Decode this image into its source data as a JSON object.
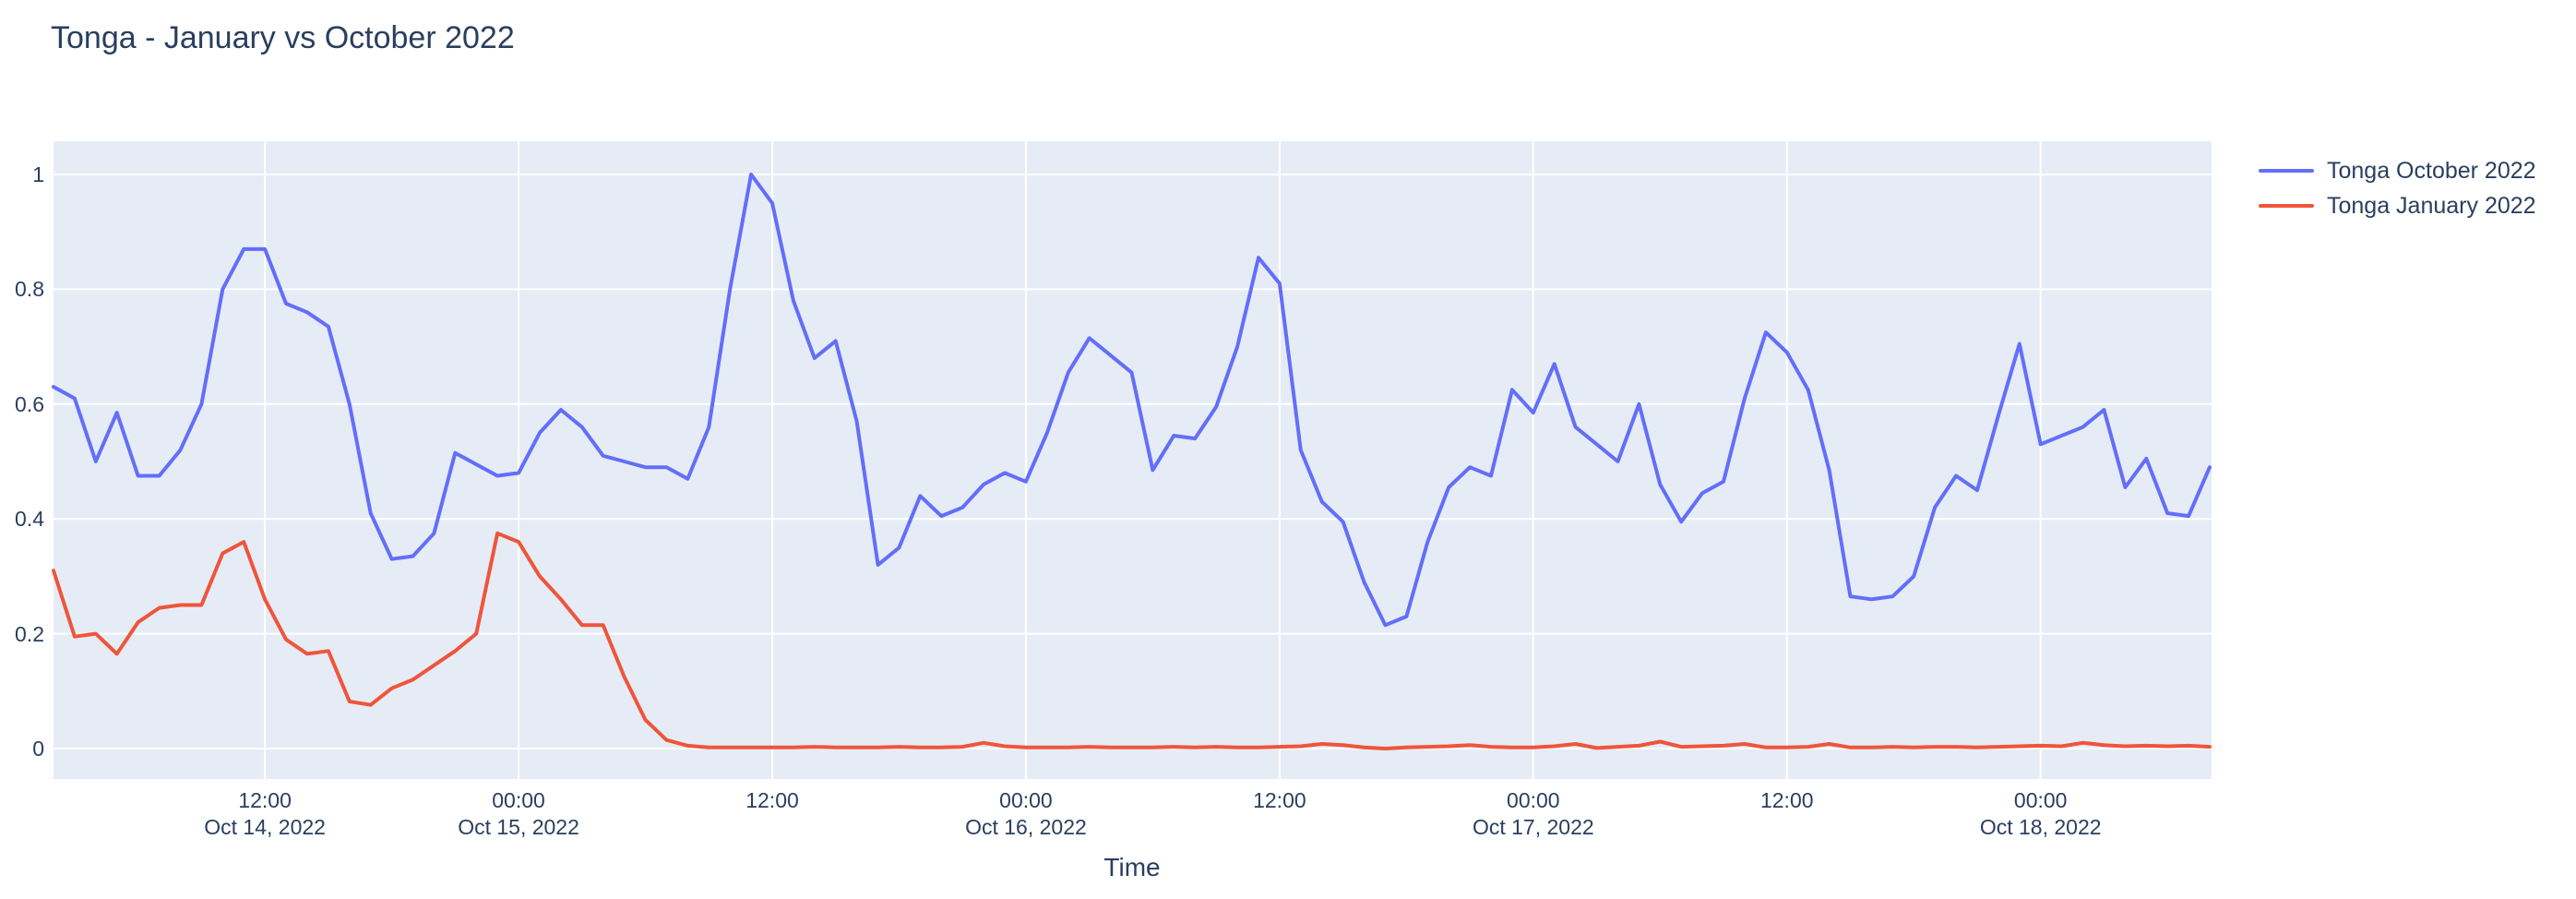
{
  "page": {
    "title": "Tonga - January vs October 2022"
  },
  "colors": {
    "page_bg": "#FFFFFF",
    "plot_bg": "#E5ECF6",
    "grid": "#FFFFFF",
    "text": "#2A3F5F",
    "october_line": "#636EFA",
    "january_line": "#EF553B"
  },
  "legend": {
    "items": [
      {
        "label": "Tonga October 2022",
        "color": "#636EFA"
      },
      {
        "label": "Tonga January 2022",
        "color": "#EF553B"
      }
    ]
  },
  "chart_data": {
    "type": "line",
    "title": "Tonga - January vs October 2022",
    "xlabel": "Time",
    "ylabel": "",
    "legend_position": "right",
    "grid": true,
    "x_start": "2022-10-14 02:00",
    "x_interval_hours": 1,
    "n_points": 103,
    "xaxis": {
      "range_hours_from_oct14_0000": [
        2,
        104
      ],
      "ticks": [
        {
          "hour": 12,
          "time": "12:00",
          "date": "Oct 14, 2022"
        },
        {
          "hour": 24,
          "time": "00:00",
          "date": "Oct 15, 2022"
        },
        {
          "hour": 36,
          "time": "12:00",
          "date": ""
        },
        {
          "hour": 48,
          "time": "00:00",
          "date": "Oct 16, 2022"
        },
        {
          "hour": 60,
          "time": "12:00",
          "date": ""
        },
        {
          "hour": 72,
          "time": "00:00",
          "date": "Oct 17, 2022"
        },
        {
          "hour": 84,
          "time": "12:00",
          "date": ""
        },
        {
          "hour": 96,
          "time": "00:00",
          "date": "Oct 18, 2022"
        }
      ]
    },
    "yaxis": {
      "tick_values": [
        0,
        0.2,
        0.4,
        0.6,
        0.8,
        1
      ],
      "range": [
        -0.053,
        1.058
      ]
    },
    "series": [
      {
        "name": "Tonga October 2022",
        "color": "#636EFA",
        "values": [
          0.63,
          0.61,
          0.5,
          0.585,
          0.475,
          0.475,
          0.52,
          0.6,
          0.8,
          0.87,
          0.87,
          0.775,
          0.76,
          0.735,
          0.6,
          0.41,
          0.33,
          0.335,
          0.375,
          0.515,
          0.495,
          0.475,
          0.48,
          0.55,
          0.59,
          0.56,
          0.51,
          0.5,
          0.49,
          0.49,
          0.47,
          0.56,
          0.8,
          1.0,
          0.95,
          0.78,
          0.68,
          0.71,
          0.57,
          0.32,
          0.35,
          0.44,
          0.405,
          0.42,
          0.46,
          0.48,
          0.465,
          0.55,
          0.655,
          0.715,
          0.685,
          0.655,
          0.485,
          0.545,
          0.54,
          0.595,
          0.7,
          0.855,
          0.81,
          0.52,
          0.43,
          0.395,
          0.29,
          0.215,
          0.23,
          0.36,
          0.455,
          0.49,
          0.475,
          0.625,
          0.585,
          0.67,
          0.56,
          0.53,
          0.5,
          0.6,
          0.46,
          0.395,
          0.445,
          0.465,
          0.61,
          0.725,
          0.69,
          0.625,
          0.485,
          0.265,
          0.26,
          0.265,
          0.3,
          0.42,
          0.475,
          0.45,
          0.58,
          0.705,
          0.53,
          0.545,
          0.56,
          0.59,
          0.455,
          0.505,
          0.41,
          0.405,
          0.49
        ]
      },
      {
        "name": "Tonga January 2022",
        "color": "#EF553B",
        "values": [
          0.31,
          0.195,
          0.2,
          0.165,
          0.22,
          0.245,
          0.25,
          0.25,
          0.34,
          0.36,
          0.26,
          0.19,
          0.165,
          0.17,
          0.082,
          0.076,
          0.105,
          0.12,
          0.145,
          0.17,
          0.2,
          0.375,
          0.36,
          0.3,
          0.26,
          0.215,
          0.215,
          0.125,
          0.05,
          0.015,
          0.005,
          0.002,
          0.002,
          0.002,
          0.002,
          0.002,
          0.003,
          0.002,
          0.002,
          0.002,
          0.003,
          0.002,
          0.002,
          0.003,
          0.01,
          0.004,
          0.002,
          0.002,
          0.002,
          0.003,
          0.002,
          0.002,
          0.002,
          0.003,
          0.002,
          0.003,
          0.002,
          0.002,
          0.003,
          0.004,
          0.008,
          0.006,
          0.002,
          0.0,
          0.002,
          0.003,
          0.004,
          0.006,
          0.003,
          0.002,
          0.002,
          0.004,
          0.008,
          0.001,
          0.003,
          0.005,
          0.012,
          0.003,
          0.004,
          0.005,
          0.008,
          0.002,
          0.002,
          0.003,
          0.008,
          0.002,
          0.002,
          0.003,
          0.002,
          0.003,
          0.003,
          0.002,
          0.003,
          0.004,
          0.005,
          0.004,
          0.01,
          0.006,
          0.004,
          0.005,
          0.004,
          0.005,
          0.003
        ]
      }
    ]
  }
}
